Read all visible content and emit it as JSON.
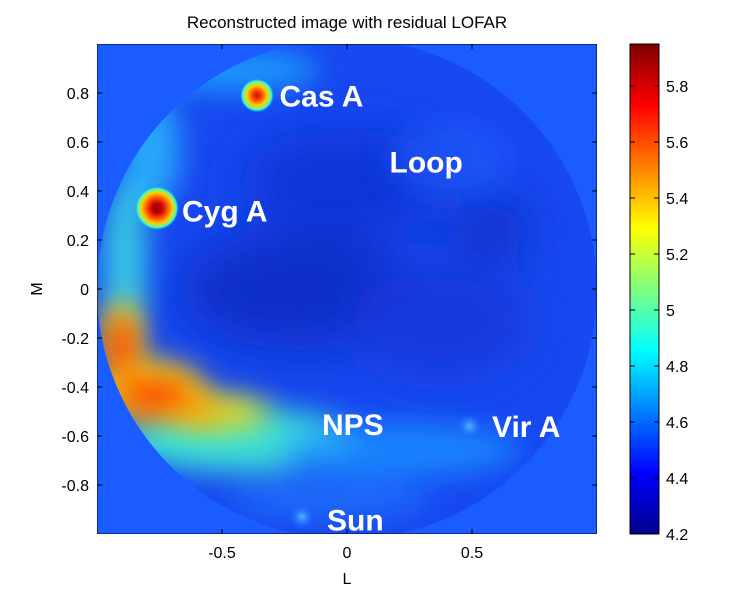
{
  "chart_data": {
    "type": "heatmap",
    "title": "Reconstructed image with residual LOFAR",
    "xlabel": "L",
    "ylabel": "M",
    "xlim": [
      -1,
      1
    ],
    "ylim": [
      -1,
      1
    ],
    "x_ticks": [
      -0.5,
      0,
      0.5
    ],
    "x_tick_labels": [
      "-0.5",
      "0",
      "0.5"
    ],
    "y_ticks": [
      0.8,
      0.6,
      0.4,
      0.2,
      0,
      -0.2,
      -0.4,
      -0.6,
      -0.8
    ],
    "y_tick_labels": [
      "0.8",
      "0.6",
      "0.4",
      "0.2",
      "0",
      "-0.2",
      "-0.4",
      "-0.6",
      "-0.8"
    ],
    "colorbar": {
      "range": [
        4.2,
        5.95
      ],
      "ticks": [
        5.8,
        5.6,
        5.4,
        5.2,
        5,
        4.8,
        4.6,
        4.4,
        4.2
      ],
      "tick_labels": [
        "5.8",
        "5.6",
        "5.4",
        "5.2",
        "5",
        "4.8",
        "4.6",
        "4.4",
        "4.2"
      ],
      "colormap": "jet"
    },
    "background_value": 4.45,
    "sky_disk_radius": 1.0,
    "sources": [
      {
        "name": "Cas A",
        "l": -0.36,
        "m": 0.79,
        "peak": 5.7
      },
      {
        "name": "Cyg A",
        "l": -0.76,
        "m": 0.33,
        "peak": 5.95
      },
      {
        "name": "Vir A",
        "l": 0.49,
        "m": -0.56,
        "peak": 4.7
      },
      {
        "name": "Sun",
        "l": -0.18,
        "m": -0.93,
        "peak": 4.7
      }
    ],
    "annotations": [
      {
        "text": "Cas A",
        "l": -0.27,
        "m": 0.79
      },
      {
        "text": "Loop",
        "l": 0.17,
        "m": 0.52
      },
      {
        "text": "Cyg A",
        "l": -0.66,
        "m": 0.32
      },
      {
        "text": "NPS",
        "l": -0.1,
        "m": -0.55
      },
      {
        "text": "Vir A",
        "l": 0.58,
        "m": -0.56
      },
      {
        "text": "Sun",
        "l": -0.08,
        "m": -0.94
      }
    ]
  }
}
